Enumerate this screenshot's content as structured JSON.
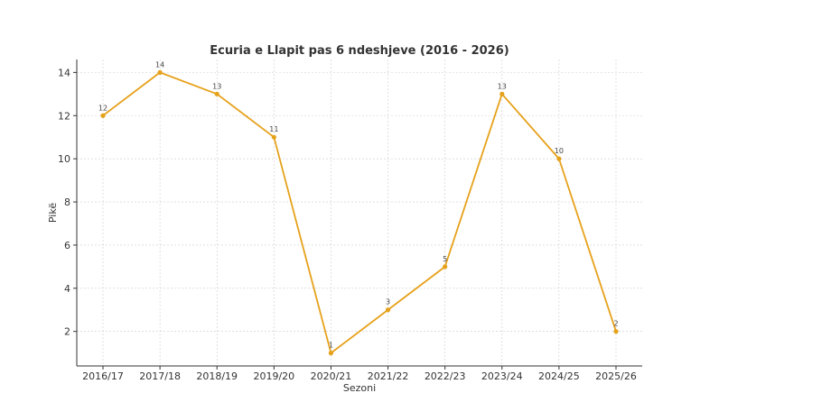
{
  "chart_data": {
    "type": "line",
    "title": "Ecuria e Llapit pas 6 ndeshjeve (2016 - 2026)",
    "xlabel": "Sezoni",
    "ylabel": "Pikë",
    "categories": [
      "2016/17",
      "2017/18",
      "2018/19",
      "2019/20",
      "2020/21",
      "2021/22",
      "2022/23",
      "2023/24",
      "2024/25",
      "2025/26"
    ],
    "series": [
      {
        "values": [
          12,
          14,
          13,
          11,
          1,
          3,
          5,
          13,
          10,
          2
        ]
      }
    ],
    "data_labels": [
      "12",
      "14",
      "13",
      "11",
      "1",
      "3",
      "5",
      "13",
      "10",
      "2"
    ],
    "yticks": [
      2,
      4,
      6,
      8,
      10,
      12,
      14
    ],
    "ylim": [
      0.4,
      14.6
    ],
    "grid": true,
    "line_color": "#E6A11B"
  }
}
